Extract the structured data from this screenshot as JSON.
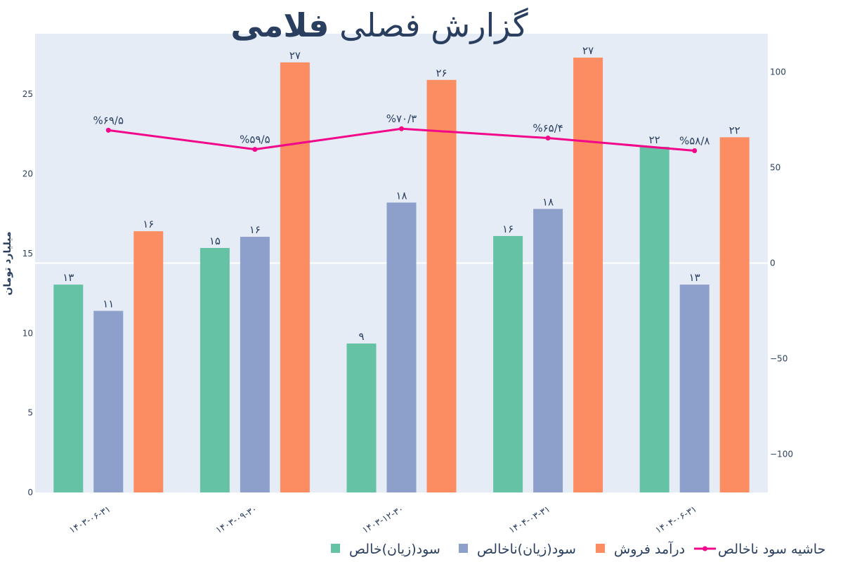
{
  "chart_data": {
    "type": "bar",
    "title": "گزارش فصلی",
    "title_bold": "فلامی",
    "ylabel": "میلیارد تومان",
    "y2label": "",
    "ylim": [
      0,
      28.8
    ],
    "y2lim": [
      -120,
      120
    ],
    "yticks": [
      "0",
      "5",
      "10",
      "15",
      "20",
      "25"
    ],
    "yticks_values": [
      0,
      5,
      10,
      15,
      20,
      25
    ],
    "y2ticks": [
      "−100",
      "−50",
      "0",
      "50",
      "100"
    ],
    "y2ticks_values": [
      -100,
      -50,
      0,
      50,
      100
    ],
    "categories": [
      "۱۴۰۳-۰۶-۳۱",
      "۱۴۰۳-۰۹-۳۰",
      "۱۴۰۳-۱۲-۳۰",
      "۱۴۰۴-۰۳-۳۱",
      "۱۴۰۴-۰۶-۳۱"
    ],
    "grid": false,
    "legend_position": "bottom-right",
    "series": [
      {
        "name": "سود(زیان)خالص",
        "type": "bar",
        "color": "#66c2a5",
        "values": [
          13.05,
          15.35,
          9.35,
          16.1,
          21.7
        ],
        "labels": [
          "۱۳",
          "۱۵",
          "۹",
          "۱۶",
          "۲۲"
        ]
      },
      {
        "name": "سود(زیان)ناخالص",
        "type": "bar",
        "color": "#8da0cb",
        "values": [
          11.4,
          16.05,
          18.2,
          17.8,
          13.05
        ],
        "labels": [
          "۱۱",
          "۱۶",
          "۱۸",
          "۱۸",
          "۱۳"
        ]
      },
      {
        "name": "درآمد فروش",
        "type": "bar",
        "color": "#fc8d62",
        "values": [
          16.4,
          27.0,
          25.9,
          27.3,
          22.3
        ],
        "labels": [
          "۱۶",
          "۲۷",
          "۲۶",
          "۲۷",
          "۲۲"
        ]
      },
      {
        "name": "حاشیه سود ناخالص",
        "type": "line",
        "axis": "y2",
        "color": "#f2078a",
        "values": [
          69.5,
          59.5,
          70.3,
          65.4,
          58.8
        ],
        "labels": [
          "%۶۹/۵",
          "%۵۹/۵",
          "%۷۰/۳",
          "%۶۵/۴",
          "%۵۸/۸"
        ]
      }
    ]
  }
}
